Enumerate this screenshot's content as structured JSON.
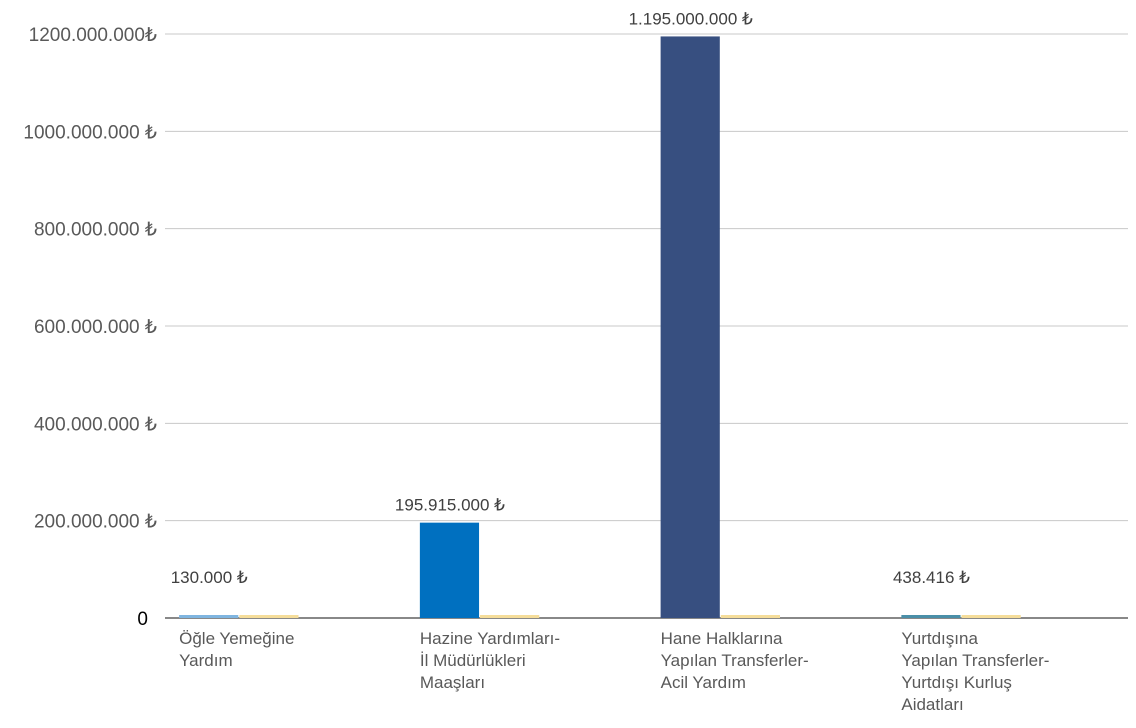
{
  "chart_data": {
    "type": "bar",
    "title": "",
    "xlabel": "",
    "ylabel": "",
    "ylim": [
      0,
      1200000000
    ],
    "grid": true,
    "y_ticks": [
      {
        "value": 0,
        "label": "0"
      },
      {
        "value": 200000000,
        "label": "200.000.000 ₺"
      },
      {
        "value": 400000000,
        "label": "400.000.000 ₺"
      },
      {
        "value": 600000000,
        "label": "600.000.000 ₺"
      },
      {
        "value": 800000000,
        "label": "800.000.000 ₺"
      },
      {
        "value": 1000000000,
        "label": "1000.000.000 ₺"
      },
      {
        "value": 1200000000,
        "label": "1200.000.000₺"
      }
    ],
    "categories": [
      {
        "lines": [
          "Öğle Yemeğine",
          "Yardım"
        ]
      },
      {
        "lines": [
          "Hazine Yardımları-",
          "İl Müdürlükleri",
          "Maaşları"
        ]
      },
      {
        "lines": [
          "Hane Halklarına",
          "Yapılan Transferler-",
          "Acil Yardım"
        ]
      },
      {
        "lines": [
          "Yurtdışına",
          "Yapılan Transferler-",
          "Yurtdışı Kurluş",
          "Aidatları"
        ]
      }
    ],
    "series": [
      {
        "colors": [
          "#7fb5e0",
          "#0070c0",
          "#374f80",
          "#4a8fa8"
        ],
        "values": [
          130000,
          195915000,
          1195000000,
          438416
        ],
        "data_labels": [
          "130.000 ₺",
          "195.915.000 ₺",
          "1.195.000.000 ₺",
          "438.416 ₺"
        ]
      },
      {
        "colors": [
          "#f5dd9a",
          "#f5dd9a",
          "#f5dd9a",
          "#f5dd9a"
        ],
        "values": [
          0,
          0,
          0,
          0
        ]
      }
    ]
  }
}
